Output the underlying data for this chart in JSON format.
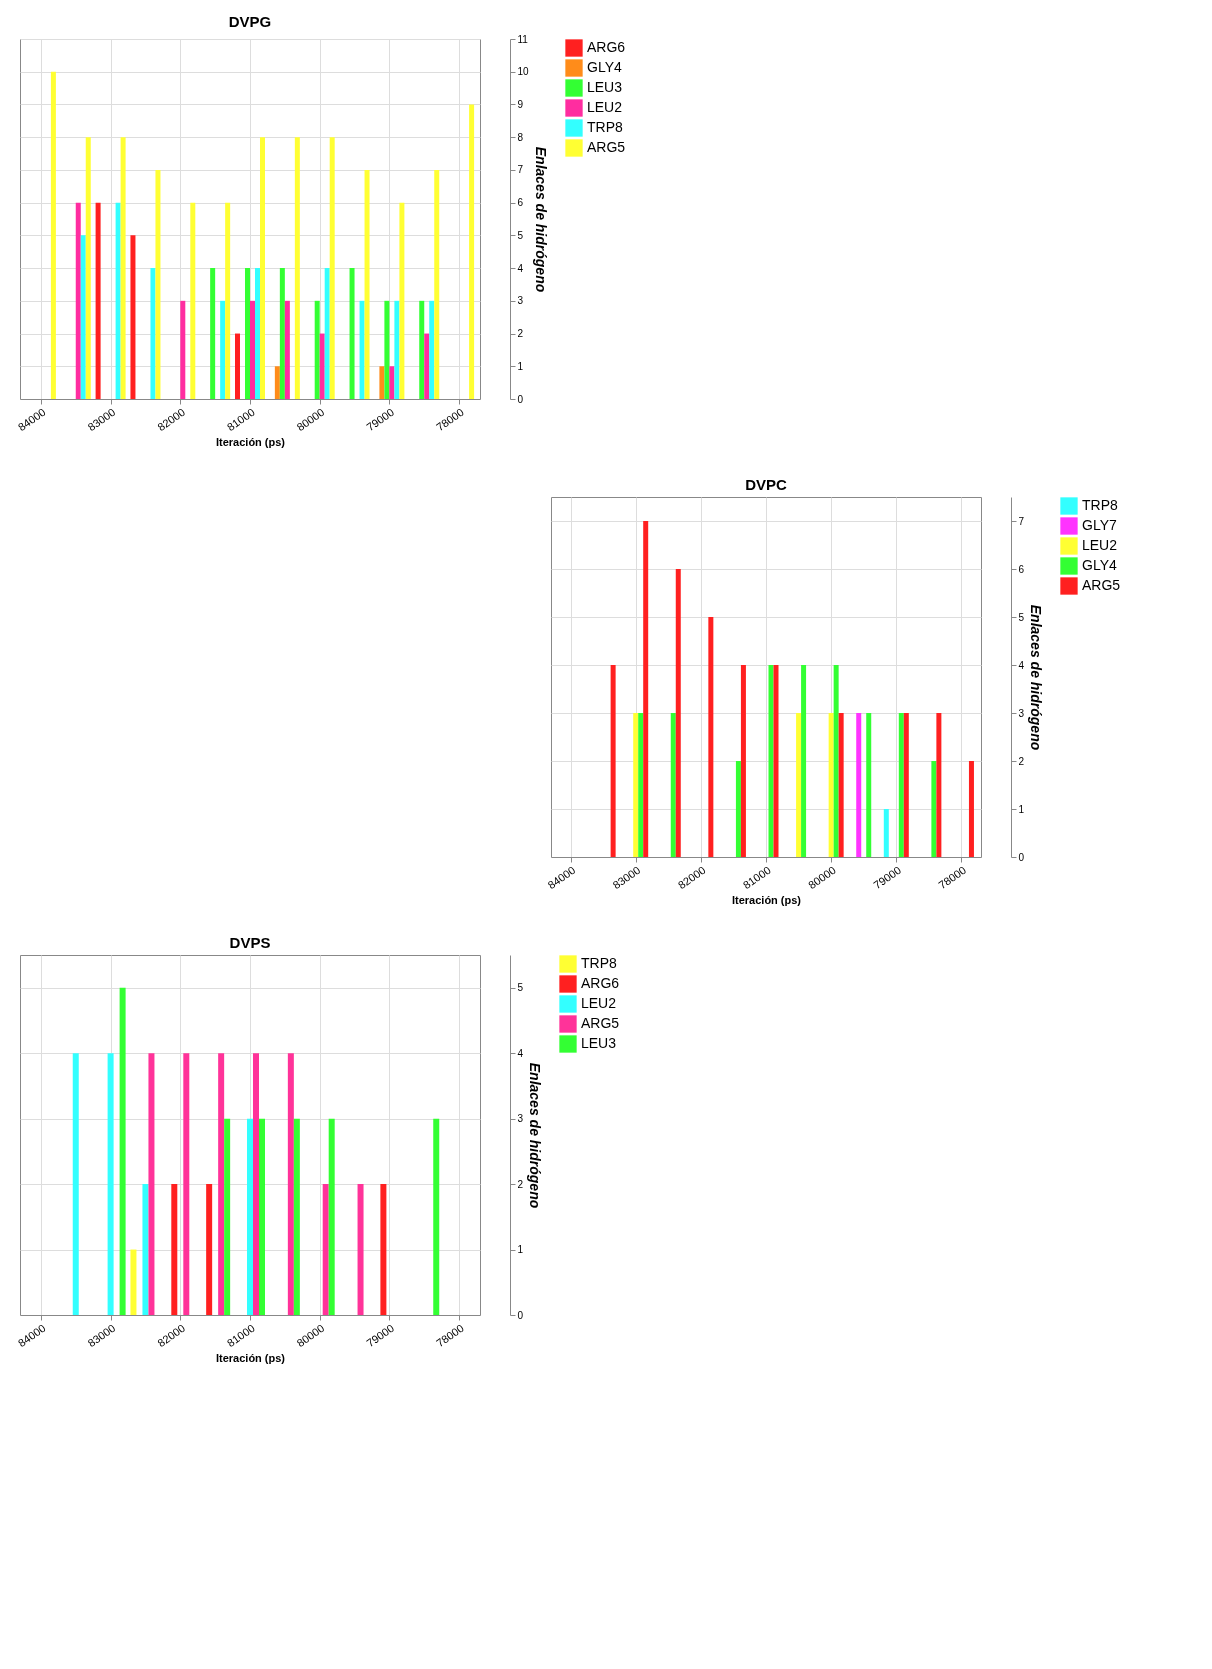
{
  "chart_data": [
    {
      "type": "bar",
      "title": "DVPG",
      "xlabel": "Iteración (ps)",
      "ylabel": "Enlaces de hidrógeno",
      "x": [
        84000,
        83500,
        83000,
        82500,
        82000,
        81500,
        81000,
        80500,
        80000,
        79500,
        79000,
        78500,
        78000
      ],
      "xlim": [
        84300,
        77700
      ],
      "xticks": [
        84000,
        83000,
        82000,
        81000,
        80000,
        79000,
        78000
      ],
      "ylim": [
        0,
        11
      ],
      "yticks": [
        0,
        1,
        2,
        3,
        4,
        5,
        6,
        7,
        8,
        9,
        10,
        11
      ],
      "grid": true,
      "legend": "right",
      "series": [
        {
          "name": "ARG6",
          "color": "#ff2020",
          "values": [
            0,
            0,
            6,
            5,
            0,
            0,
            2,
            0,
            0,
            0,
            0,
            0,
            0
          ]
        },
        {
          "name": "GLY4",
          "color": "#ff8c1a",
          "values": [
            0,
            0,
            0,
            0,
            0,
            0,
            0,
            1,
            0,
            0,
            1,
            0,
            0
          ]
        },
        {
          "name": "LEU3",
          "color": "#33ff33",
          "values": [
            0,
            0,
            0,
            0,
            0,
            4,
            4,
            4,
            3,
            4,
            3,
            3,
            0
          ]
        },
        {
          "name": "LEU2",
          "color": "#ff2da0",
          "values": [
            0,
            6,
            0,
            0,
            3,
            0,
            3,
            3,
            2,
            0,
            1,
            2,
            0
          ]
        },
        {
          "name": "TRP8",
          "color": "#33ffff",
          "values": [
            0,
            5,
            6,
            4,
            0,
            3,
            4,
            0,
            4,
            3,
            3,
            3,
            0
          ]
        },
        {
          "name": "ARG5",
          "color": "#ffff33",
          "values": [
            10,
            8,
            8,
            7,
            6,
            6,
            8,
            8,
            8,
            7,
            6,
            7,
            9
          ]
        }
      ]
    },
    {
      "type": "bar",
      "title": "DVPC",
      "xlabel": "Iteración (ps)",
      "ylabel": "Enlaces de hidrógeno",
      "x": [
        84000,
        83500,
        83000,
        82500,
        82000,
        81500,
        81000,
        80500,
        80000,
        79500,
        79000,
        78500,
        78000
      ],
      "xlim": [
        84300,
        77700
      ],
      "xticks": [
        84000,
        83000,
        82000,
        81000,
        80000,
        79000,
        78000
      ],
      "ylim": [
        0,
        7.5
      ],
      "yticks": [
        0,
        1,
        2,
        3,
        4,
        5,
        6,
        7
      ],
      "grid": true,
      "legend": "right",
      "series": [
        {
          "name": "TRP8",
          "color": "#33ffff",
          "values": [
            0,
            0,
            0,
            0,
            0,
            0,
            0,
            0,
            0,
            0,
            1,
            0,
            0
          ]
        },
        {
          "name": "GLY7",
          "color": "#ff33ff",
          "values": [
            0,
            0,
            0,
            0,
            0,
            0,
            0,
            0,
            0,
            3,
            0,
            0,
            0
          ]
        },
        {
          "name": "LEU2",
          "color": "#ffff33",
          "values": [
            0,
            0,
            3,
            0,
            0,
            0,
            0,
            3,
            3,
            0,
            0,
            0,
            0
          ]
        },
        {
          "name": "GLY4",
          "color": "#33ff33",
          "values": [
            0,
            0,
            3,
            3,
            0,
            2,
            4,
            4,
            4,
            3,
            3,
            2,
            0
          ]
        },
        {
          "name": "ARG5",
          "color": "#ff2020",
          "values": [
            0,
            4,
            7,
            6,
            5,
            4,
            4,
            0,
            3,
            0,
            3,
            3,
            2
          ]
        }
      ]
    },
    {
      "type": "bar",
      "title": "DVPS",
      "xlabel": "Iteración (ps)",
      "ylabel": "Enlaces de hidrógeno",
      "x": [
        84000,
        83500,
        83000,
        82500,
        82000,
        81500,
        81000,
        80500,
        80000,
        79500,
        79000,
        78500,
        78000
      ],
      "xlim": [
        84300,
        77700
      ],
      "xticks": [
        84000,
        83000,
        82000,
        81000,
        80000,
        79000,
        78000
      ],
      "ylim": [
        0,
        5.5
      ],
      "yticks": [
        0,
        1,
        2,
        3,
        4,
        5
      ],
      "grid": true,
      "legend": "right",
      "series": [
        {
          "name": "TRP8",
          "color": "#ffff33",
          "values": [
            0,
            0,
            0,
            1,
            0,
            0,
            0,
            0,
            0,
            0,
            0,
            0,
            0
          ]
        },
        {
          "name": "ARG6",
          "color": "#ff2020",
          "values": [
            0,
            0,
            0,
            0,
            2,
            2,
            0,
            0,
            0,
            0,
            2,
            0,
            0
          ]
        },
        {
          "name": "LEU2",
          "color": "#33ffff",
          "values": [
            0,
            4,
            4,
            2,
            0,
            0,
            3,
            0,
            0,
            0,
            0,
            0,
            0
          ]
        },
        {
          "name": "ARG5",
          "color": "#ff3399",
          "values": [
            0,
            0,
            0,
            4,
            4,
            4,
            4,
            4,
            2,
            2,
            0,
            0,
            0
          ]
        },
        {
          "name": "LEU3",
          "color": "#33ff33",
          "values": [
            0,
            0,
            5,
            0,
            0,
            3,
            3,
            3,
            3,
            0,
            0,
            3,
            0
          ]
        }
      ]
    }
  ]
}
